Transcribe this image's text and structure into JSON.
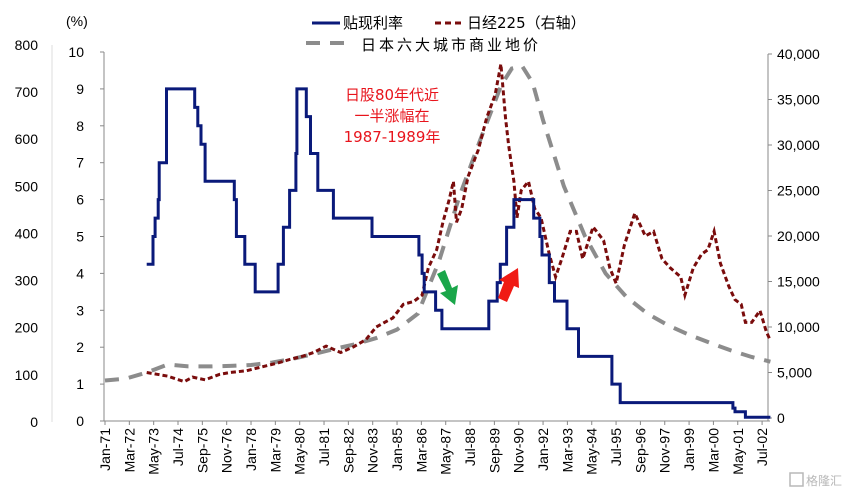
{
  "chart_data": {
    "type": "line",
    "title": "",
    "x_tick_labels": [
      "Jan-71",
      "Mar-72",
      "May-73",
      "Jul-74",
      "Sep-75",
      "Nov-76",
      "Jan-78",
      "Mar-79",
      "May-80",
      "Jul-81",
      "Sep-82",
      "Nov-83",
      "Jan-85",
      "Mar-86",
      "May-87",
      "Jul-88",
      "Sep-89",
      "Nov-90",
      "Jan-92",
      "Mar-93",
      "May-94",
      "Jul-95",
      "Sep-96",
      "Nov-97",
      "Jan-99",
      "Mar-00",
      "May-01",
      "Jul-02"
    ],
    "axes": {
      "left_inner": {
        "label": "(%)",
        "ylim": [
          0,
          10
        ],
        "ticks": [
          "0",
          "1",
          "2",
          "3",
          "4",
          "5",
          "6",
          "7",
          "8",
          "9",
          "10"
        ]
      },
      "left_outer": {
        "ylim": [
          0,
          800
        ],
        "ticks": [
          "0",
          "100",
          "200",
          "300",
          "400",
          "500",
          "600",
          "700",
          "800"
        ]
      },
      "right": {
        "ylim": [
          0,
          40000
        ],
        "ticks": [
          "0",
          "5,000",
          "10,000",
          "15,000",
          "20,000",
          "25,000",
          "30,000",
          "35,000",
          "40,000"
        ]
      }
    },
    "series": [
      {
        "name": "贴现利率",
        "axis": "left_inner",
        "style": "solid-step",
        "color": "#0a1a7a",
        "points": [
          [
            1973.0,
            4.25
          ],
          [
            1973.3,
            5.0
          ],
          [
            1973.4,
            5.5
          ],
          [
            1973.55,
            6.0
          ],
          [
            1973.6,
            7.0
          ],
          [
            1973.95,
            9.0
          ],
          [
            1975.3,
            8.5
          ],
          [
            1975.45,
            8.0
          ],
          [
            1975.6,
            7.5
          ],
          [
            1975.8,
            6.5
          ],
          [
            1977.2,
            6.0
          ],
          [
            1977.3,
            5.0
          ],
          [
            1977.7,
            4.25
          ],
          [
            1978.2,
            3.5
          ],
          [
            1979.3,
            4.25
          ],
          [
            1979.55,
            5.25
          ],
          [
            1979.85,
            6.25
          ],
          [
            1980.15,
            7.25
          ],
          [
            1980.2,
            9.0
          ],
          [
            1980.65,
            8.25
          ],
          [
            1980.85,
            7.25
          ],
          [
            1981.2,
            6.25
          ],
          [
            1981.95,
            5.5
          ],
          [
            1983.8,
            5.0
          ],
          [
            1986.05,
            4.5
          ],
          [
            1986.2,
            4.0
          ],
          [
            1986.3,
            3.5
          ],
          [
            1986.85,
            3.0
          ],
          [
            1987.15,
            2.5
          ],
          [
            1989.4,
            3.25
          ],
          [
            1989.8,
            3.75
          ],
          [
            1989.95,
            4.25
          ],
          [
            1990.25,
            5.25
          ],
          [
            1990.6,
            6.0
          ],
          [
            1991.55,
            5.5
          ],
          [
            1991.85,
            5.0
          ],
          [
            1991.95,
            4.5
          ],
          [
            1992.3,
            3.75
          ],
          [
            1992.55,
            3.25
          ],
          [
            1993.15,
            2.5
          ],
          [
            1993.7,
            1.75
          ],
          [
            1995.3,
            1.0
          ],
          [
            1995.7,
            0.5
          ],
          [
            2001.1,
            0.35
          ],
          [
            2001.2,
            0.25
          ],
          [
            2001.7,
            0.1
          ],
          [
            2002.9,
            0.1
          ]
        ]
      },
      {
        "name": "日经225（右轴）",
        "axis": "right",
        "style": "dotted",
        "color": "#7a0c0c",
        "points": [
          [
            1973.0,
            5000
          ],
          [
            1973.5,
            4800
          ],
          [
            1974.0,
            4600
          ],
          [
            1974.4,
            4300
          ],
          [
            1974.8,
            4000
          ],
          [
            1975.2,
            4500
          ],
          [
            1975.8,
            4200
          ],
          [
            1976.5,
            4800
          ],
          [
            1977.0,
            5000
          ],
          [
            1977.8,
            5200
          ],
          [
            1978.5,
            5600
          ],
          [
            1979.2,
            6000
          ],
          [
            1979.8,
            6400
          ],
          [
            1980.5,
            6800
          ],
          [
            1981.0,
            7200
          ],
          [
            1981.6,
            7900
          ],
          [
            1982.3,
            7200
          ],
          [
            1982.9,
            7800
          ],
          [
            1983.5,
            8600
          ],
          [
            1984.0,
            10000
          ],
          [
            1984.4,
            10500
          ],
          [
            1984.8,
            11000
          ],
          [
            1985.3,
            12500
          ],
          [
            1985.8,
            12800
          ],
          [
            1986.2,
            13500
          ],
          [
            1986.5,
            16500
          ],
          [
            1986.9,
            18500
          ],
          [
            1987.2,
            21500
          ],
          [
            1987.5,
            24000
          ],
          [
            1987.7,
            26000
          ],
          [
            1987.85,
            21500
          ],
          [
            1988.1,
            23000
          ],
          [
            1988.4,
            26500
          ],
          [
            1988.9,
            29500
          ],
          [
            1989.3,
            33000
          ],
          [
            1989.7,
            35500
          ],
          [
            1989.98,
            38900
          ],
          [
            1990.2,
            33000
          ],
          [
            1990.35,
            30000
          ],
          [
            1990.6,
            26000
          ],
          [
            1990.75,
            22000
          ],
          [
            1990.95,
            25000
          ],
          [
            1991.3,
            26000
          ],
          [
            1991.6,
            23000
          ],
          [
            1991.9,
            22000
          ],
          [
            1992.3,
            18000
          ],
          [
            1992.6,
            15500
          ],
          [
            1992.9,
            17500
          ],
          [
            1993.3,
            20500
          ],
          [
            1993.6,
            20500
          ],
          [
            1993.9,
            17500
          ],
          [
            1994.4,
            21000
          ],
          [
            1994.9,
            19500
          ],
          [
            1995.2,
            16500
          ],
          [
            1995.5,
            14800
          ],
          [
            1995.9,
            19000
          ],
          [
            1996.4,
            22500
          ],
          [
            1996.9,
            20000
          ],
          [
            1997.3,
            20500
          ],
          [
            1997.7,
            17500
          ],
          [
            1998.1,
            16500
          ],
          [
            1998.6,
            15500
          ],
          [
            1998.8,
            13500
          ],
          [
            1999.2,
            16500
          ],
          [
            1999.6,
            18000
          ],
          [
            1999.9,
            18500
          ],
          [
            2000.2,
            20500
          ],
          [
            2000.5,
            17000
          ],
          [
            2000.9,
            14500
          ],
          [
            2001.2,
            13000
          ],
          [
            2001.5,
            12500
          ],
          [
            2001.7,
            10500
          ],
          [
            2002.0,
            10500
          ],
          [
            2002.4,
            11800
          ],
          [
            2002.7,
            9500
          ],
          [
            2002.9,
            8500
          ]
        ]
      },
      {
        "name": "日本六大城市商业地价",
        "axis": "left_outer",
        "style": "dashed",
        "color": "#8c8c8c",
        "points": [
          [
            1971.0,
            88
          ],
          [
            1972.0,
            92
          ],
          [
            1973.0,
            105
          ],
          [
            1974.0,
            122
          ],
          [
            1975.0,
            118
          ],
          [
            1976.0,
            118
          ],
          [
            1977.0,
            119
          ],
          [
            1978.0,
            121
          ],
          [
            1979.0,
            126
          ],
          [
            1980.0,
            134
          ],
          [
            1981.0,
            144
          ],
          [
            1982.0,
            155
          ],
          [
            1983.0,
            165
          ],
          [
            1984.0,
            178
          ],
          [
            1985.0,
            196
          ],
          [
            1986.0,
            230
          ],
          [
            1987.0,
            340
          ],
          [
            1988.0,
            480
          ],
          [
            1989.0,
            600
          ],
          [
            1990.0,
            715
          ],
          [
            1990.5,
            750
          ],
          [
            1991.0,
            755
          ],
          [
            1991.5,
            720
          ],
          [
            1992.0,
            640
          ],
          [
            1993.0,
            500
          ],
          [
            1994.0,
            395
          ],
          [
            1995.0,
            315
          ],
          [
            1996.0,
            265
          ],
          [
            1997.0,
            230
          ],
          [
            1998.0,
            205
          ],
          [
            1999.0,
            185
          ],
          [
            2000.0,
            168
          ],
          [
            2001.0,
            152
          ],
          [
            2002.0,
            138
          ],
          [
            2002.9,
            128
          ]
        ]
      }
    ],
    "legend": {
      "placement": "top-center",
      "entries": [
        "贴现利率",
        "日经225（右轴）",
        "日本六大城市商业地价"
      ]
    },
    "annotations": {
      "text_lines": [
        "日股80年代近",
        "一半涨幅在",
        "1987-1989年"
      ],
      "arrow_down_color": "#1aa64a",
      "arrow_up_color": "#f01a14"
    }
  },
  "watermark": "格隆汇"
}
